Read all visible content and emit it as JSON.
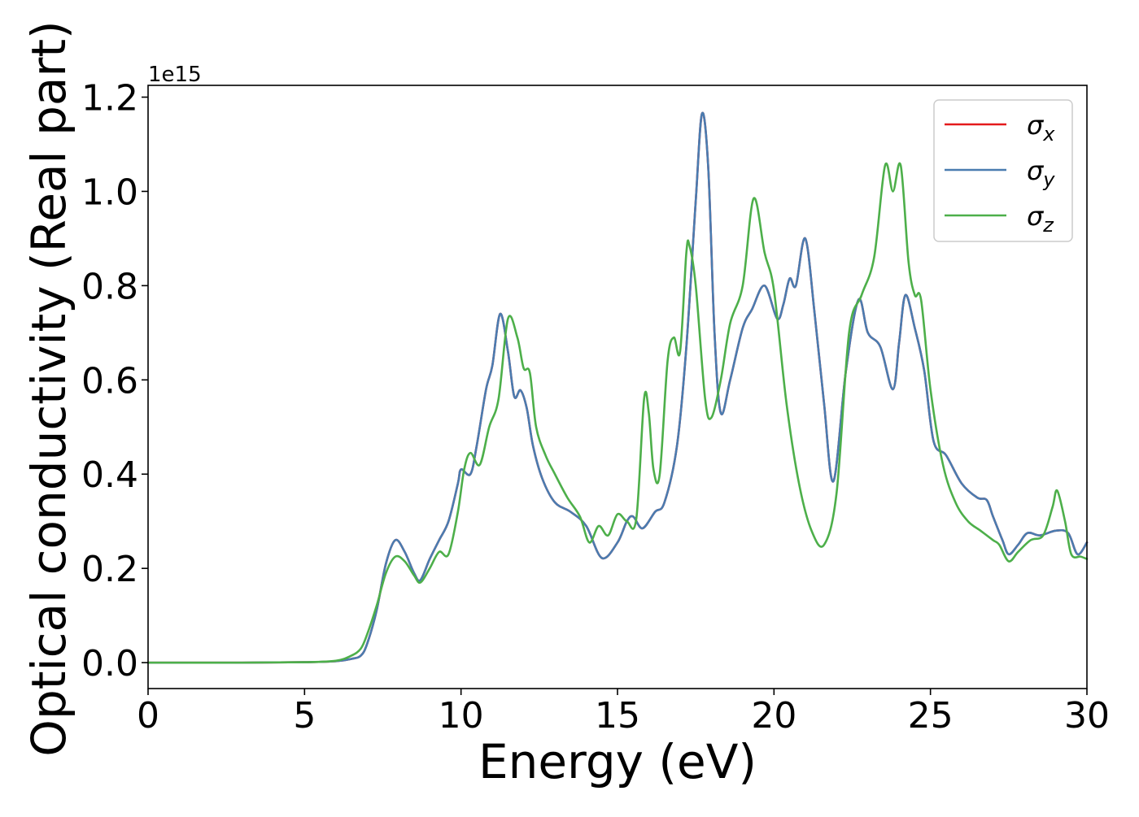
{
  "chart_data": {
    "type": "line",
    "xlabel": "Energy (eV)",
    "ylabel": "Optical conductivity (Real part)",
    "offset_text": "1e15",
    "xlim": [
      0,
      30
    ],
    "ylim": [
      -0.055,
      1.225
    ],
    "xticks": [
      0,
      5,
      10,
      15,
      20,
      25,
      30
    ],
    "xtick_labels": [
      "0",
      "5",
      "10",
      "15",
      "20",
      "25",
      "30"
    ],
    "yticks": [
      0.0,
      0.2,
      0.4,
      0.6,
      0.8,
      1.0,
      1.2
    ],
    "ytick_labels": [
      "0.0",
      "0.2",
      "0.4",
      "0.6",
      "0.8",
      "1.0",
      "1.2"
    ],
    "grid": false,
    "legend_position": "upper-right",
    "y_scale_factor": 1000000000000000.0,
    "series": [
      {
        "name": "σx",
        "legend_base": "σ",
        "legend_sub": "x",
        "color": "#e41a1c",
        "x": [
          0,
          3,
          5,
          6,
          6.5,
          6.8,
          7.0,
          7.3,
          7.6,
          7.9,
          8.2,
          8.5,
          8.7,
          9.0,
          9.3,
          9.6,
          9.9,
          10.0,
          10.3,
          10.5,
          10.8,
          11.0,
          11.25,
          11.5,
          11.7,
          11.9,
          12.1,
          12.3,
          12.6,
          13.0,
          13.5,
          14.0,
          14.5,
          15.0,
          15.3,
          15.5,
          15.8,
          16.2,
          16.5,
          16.9,
          17.2,
          17.5,
          17.7,
          17.9,
          18.1,
          18.3,
          18.6,
          19.0,
          19.3,
          19.7,
          20.1,
          20.3,
          20.5,
          20.7,
          21.0,
          21.3,
          21.6,
          21.9,
          22.3,
          22.7,
          23.0,
          23.4,
          23.8,
          24.0,
          24.2,
          24.5,
          24.8,
          25.1,
          25.5,
          26.0,
          26.5,
          26.8,
          27.0,
          27.3,
          27.5,
          27.8,
          28.1,
          28.5,
          29.0,
          29.4,
          29.7,
          30.0
        ],
        "y": [
          0.0,
          0.0,
          0.001,
          0.003,
          0.008,
          0.015,
          0.04,
          0.11,
          0.21,
          0.26,
          0.235,
          0.19,
          0.175,
          0.22,
          0.26,
          0.3,
          0.38,
          0.41,
          0.4,
          0.46,
          0.58,
          0.63,
          0.74,
          0.66,
          0.565,
          0.578,
          0.54,
          0.46,
          0.39,
          0.34,
          0.32,
          0.29,
          0.222,
          0.255,
          0.3,
          0.31,
          0.285,
          0.32,
          0.34,
          0.46,
          0.67,
          0.98,
          1.165,
          1.05,
          0.7,
          0.53,
          0.6,
          0.71,
          0.75,
          0.8,
          0.73,
          0.76,
          0.815,
          0.8,
          0.9,
          0.74,
          0.55,
          0.385,
          0.62,
          0.77,
          0.7,
          0.67,
          0.58,
          0.68,
          0.78,
          0.71,
          0.62,
          0.47,
          0.44,
          0.38,
          0.35,
          0.345,
          0.31,
          0.26,
          0.23,
          0.25,
          0.275,
          0.27,
          0.28,
          0.275,
          0.23,
          0.255
        ]
      },
      {
        "name": "σy",
        "legend_base": "σ",
        "legend_sub": "y",
        "color": "#4a7cb0",
        "x": [
          0,
          3,
          5,
          6,
          6.5,
          6.8,
          7.0,
          7.3,
          7.6,
          7.9,
          8.2,
          8.5,
          8.7,
          9.0,
          9.3,
          9.6,
          9.9,
          10.0,
          10.3,
          10.5,
          10.8,
          11.0,
          11.25,
          11.5,
          11.7,
          11.9,
          12.1,
          12.3,
          12.6,
          13.0,
          13.5,
          14.0,
          14.5,
          15.0,
          15.3,
          15.5,
          15.8,
          16.2,
          16.5,
          16.9,
          17.2,
          17.5,
          17.7,
          17.9,
          18.1,
          18.3,
          18.6,
          19.0,
          19.3,
          19.7,
          20.1,
          20.3,
          20.5,
          20.7,
          21.0,
          21.3,
          21.6,
          21.9,
          22.3,
          22.7,
          23.0,
          23.4,
          23.8,
          24.0,
          24.2,
          24.5,
          24.8,
          25.1,
          25.5,
          26.0,
          26.5,
          26.8,
          27.0,
          27.3,
          27.5,
          27.8,
          28.1,
          28.5,
          29.0,
          29.4,
          29.7,
          30.0
        ],
        "y": [
          0.0,
          0.0,
          0.001,
          0.003,
          0.008,
          0.015,
          0.04,
          0.11,
          0.21,
          0.26,
          0.235,
          0.19,
          0.175,
          0.22,
          0.26,
          0.3,
          0.38,
          0.41,
          0.4,
          0.46,
          0.58,
          0.63,
          0.74,
          0.66,
          0.565,
          0.578,
          0.54,
          0.46,
          0.39,
          0.34,
          0.32,
          0.29,
          0.222,
          0.255,
          0.3,
          0.31,
          0.285,
          0.32,
          0.34,
          0.46,
          0.67,
          0.98,
          1.165,
          1.05,
          0.7,
          0.53,
          0.6,
          0.71,
          0.75,
          0.8,
          0.73,
          0.76,
          0.815,
          0.8,
          0.9,
          0.74,
          0.55,
          0.385,
          0.62,
          0.77,
          0.7,
          0.67,
          0.58,
          0.68,
          0.78,
          0.71,
          0.62,
          0.47,
          0.44,
          0.38,
          0.35,
          0.345,
          0.31,
          0.26,
          0.23,
          0.25,
          0.275,
          0.27,
          0.28,
          0.275,
          0.23,
          0.255
        ]
      },
      {
        "name": "σz",
        "legend_base": "σ",
        "legend_sub": "z",
        "color": "#4daf4a",
        "x": [
          0,
          3,
          5,
          6,
          6.5,
          6.8,
          7.0,
          7.3,
          7.6,
          7.9,
          8.2,
          8.5,
          8.7,
          9.0,
          9.3,
          9.6,
          9.9,
          10.1,
          10.3,
          10.6,
          10.9,
          11.2,
          11.5,
          11.8,
          12.0,
          12.2,
          12.4,
          12.7,
          13.0,
          13.4,
          13.8,
          14.1,
          14.4,
          14.7,
          15.0,
          15.3,
          15.6,
          15.85,
          16.0,
          16.15,
          16.35,
          16.6,
          16.8,
          17.0,
          17.2,
          17.3,
          17.5,
          17.8,
          18.0,
          18.3,
          18.6,
          19.0,
          19.35,
          19.7,
          20.0,
          20.4,
          20.8,
          21.2,
          21.6,
          22.0,
          22.4,
          22.8,
          23.2,
          23.55,
          23.8,
          24.05,
          24.3,
          24.5,
          24.7,
          25.0,
          25.4,
          25.8,
          26.2,
          26.6,
          27.0,
          27.2,
          27.5,
          27.8,
          28.2,
          28.6,
          28.9,
          29.05,
          29.3,
          29.5,
          29.8,
          30.0
        ],
        "y": [
          0.0,
          0.0,
          0.001,
          0.004,
          0.015,
          0.03,
          0.06,
          0.12,
          0.19,
          0.225,
          0.215,
          0.185,
          0.17,
          0.2,
          0.235,
          0.23,
          0.32,
          0.41,
          0.445,
          0.42,
          0.5,
          0.56,
          0.73,
          0.69,
          0.625,
          0.615,
          0.5,
          0.44,
          0.4,
          0.35,
          0.31,
          0.255,
          0.29,
          0.27,
          0.315,
          0.3,
          0.305,
          0.56,
          0.53,
          0.41,
          0.4,
          0.64,
          0.69,
          0.66,
          0.87,
          0.885,
          0.8,
          0.56,
          0.52,
          0.6,
          0.72,
          0.8,
          0.985,
          0.87,
          0.79,
          0.55,
          0.38,
          0.28,
          0.25,
          0.36,
          0.7,
          0.78,
          0.86,
          1.055,
          1.0,
          1.055,
          0.85,
          0.78,
          0.77,
          0.58,
          0.42,
          0.34,
          0.3,
          0.28,
          0.26,
          0.25,
          0.215,
          0.235,
          0.26,
          0.27,
          0.33,
          0.365,
          0.3,
          0.23,
          0.225,
          0.22
        ]
      }
    ]
  }
}
